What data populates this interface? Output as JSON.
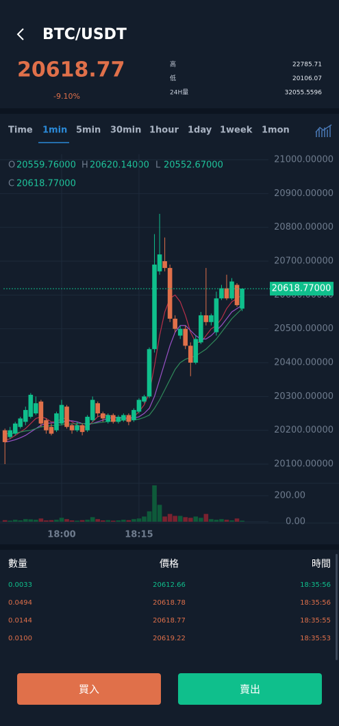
{
  "header": {
    "title": "BTC/USDT",
    "price": "20618.77",
    "change": "-9.10%"
  },
  "stats": [
    {
      "label": "高",
      "value": "22785.71"
    },
    {
      "label": "低",
      "value": "20106.07"
    },
    {
      "label": "24H量",
      "value": "32055.5596"
    }
  ],
  "tabs": {
    "items": [
      "Time",
      "1min",
      "5min",
      "30min",
      "1hour",
      "1day",
      "1week",
      "1mon"
    ],
    "active": 1
  },
  "ohlc": [
    {
      "label": "O",
      "value": "20559.76000"
    },
    {
      "label": "H",
      "value": "20620.14000"
    },
    {
      "label": "L",
      "value": "20552.67000"
    },
    {
      "label": "C",
      "value": "20618.77000"
    }
  ],
  "chart_data": {
    "type": "candlestick",
    "x": [
      null,
      null,
      null,
      null,
      null,
      null,
      null,
      null,
      null,
      null,
      null,
      "18:00",
      null,
      null,
      null,
      null,
      null,
      null,
      null,
      null,
      null,
      null,
      null,
      null,
      null,
      null,
      "18:15",
      null,
      null,
      null,
      null,
      null,
      null,
      null,
      null,
      null,
      null,
      null,
      null,
      null,
      null,
      null,
      null,
      null,
      null,
      null,
      null
    ],
    "open": [
      20200,
      20180,
      20190,
      20210,
      20225,
      20240,
      20250,
      20285,
      20230,
      20210,
      20200,
      20220,
      20270,
      20215,
      20200,
      20215,
      20200,
      20230,
      20280,
      20250,
      20225,
      20245,
      20225,
      20230,
      20245,
      20230,
      20255,
      20285,
      20300,
      20440,
      20670,
      20700,
      20680,
      20530,
      20480,
      20500,
      20450,
      20400,
      20460,
      20540,
      20520,
      20490,
      20590,
      20620,
      20590,
      20630,
      20559.76
    ],
    "high": [
      20205,
      20210,
      20225,
      20240,
      20270,
      20310,
      20300,
      20290,
      20235,
      20220,
      20255,
      20290,
      20275,
      20220,
      20225,
      20220,
      20245,
      20300,
      20285,
      20255,
      20250,
      20250,
      20245,
      20250,
      20250,
      20265,
      20295,
      20305,
      20445,
      20780,
      20840,
      20770,
      20690,
      20540,
      20510,
      20510,
      20460,
      20480,
      20550,
      20680,
      20545,
      20610,
      20630,
      20660,
      20650,
      20635,
      20620.14
    ],
    "low": [
      20100,
      20175,
      20185,
      20205,
      20215,
      20235,
      20245,
      20210,
      20190,
      20185,
      20195,
      20215,
      20205,
      20190,
      20195,
      20185,
      20195,
      20225,
      20240,
      20225,
      20220,
      20220,
      20220,
      20225,
      20215,
      20225,
      20250,
      20280,
      20295,
      20430,
      20660,
      20670,
      20520,
      20490,
      20470,
      20440,
      20360,
      20395,
      20455,
      20510,
      20510,
      20480,
      20585,
      20585,
      20585,
      20565,
      20552.67
    ],
    "close": [
      20165,
      20200,
      20220,
      20235,
      20260,
      20305,
      20280,
      20220,
      20200,
      20190,
      20250,
      20275,
      20210,
      20200,
      20215,
      20195,
      20240,
      20290,
      20250,
      20235,
      20245,
      20225,
      20240,
      20245,
      20225,
      20260,
      20290,
      20300,
      20440,
      20690,
      20720,
      20680,
      20530,
      20500,
      20500,
      20450,
      20400,
      20470,
      20540,
      20520,
      20540,
      20590,
      20620,
      20590,
      20640,
      20570,
      20618.77
    ],
    "volume": [
      12,
      8,
      15,
      10,
      20,
      18,
      15,
      25,
      10,
      12,
      15,
      30,
      20,
      10,
      8,
      12,
      15,
      35,
      20,
      10,
      12,
      8,
      10,
      15,
      12,
      20,
      25,
      40,
      80,
      280,
      130,
      40,
      60,
      45,
      45,
      35,
      30,
      40,
      30,
      60,
      20,
      15,
      20,
      15,
      10,
      25,
      8
    ],
    "moving_averages": [
      {
        "color": "#b8304a",
        "values": [
          20170,
          20175,
          20185,
          20195,
          20205,
          20220,
          20235,
          20240,
          20235,
          20225,
          20225,
          20235,
          20235,
          20225,
          20215,
          20210,
          20210,
          20225,
          20240,
          20245,
          20245,
          20240,
          20237,
          20235,
          20235,
          20240,
          20255,
          20275,
          20310,
          20390,
          20480,
          20550,
          20590,
          20600,
          20580,
          20540,
          20490,
          20460,
          20460,
          20480,
          20500,
          20510,
          20530,
          20560,
          20580,
          20590,
          20600
        ]
      },
      {
        "color": "#9b52c9",
        "values": [
          20165,
          20168,
          20172,
          20178,
          20185,
          20195,
          20205,
          20215,
          20220,
          20222,
          20222,
          20225,
          20228,
          20228,
          20225,
          20220,
          20218,
          20220,
          20225,
          20230,
          20235,
          20238,
          20238,
          20237,
          20236,
          20236,
          20240,
          20250,
          20265,
          20300,
          20350,
          20400,
          20450,
          20490,
          20510,
          20510,
          20495,
          20480,
          20470,
          20470,
          20480,
          20495,
          20510,
          20530,
          20550,
          20560,
          20570
        ]
      },
      {
        "color": "#2f8a5a",
        "values": [
          20190,
          20190,
          20192,
          20195,
          20198,
          20200,
          20205,
          20210,
          20212,
          20214,
          20215,
          20216,
          20218,
          20219,
          20220,
          20220,
          20220,
          20220,
          20222,
          20224,
          20226,
          20228,
          20229,
          20230,
          20230,
          20231,
          20233,
          20238,
          20245,
          20265,
          20290,
          20320,
          20350,
          20380,
          20400,
          20410,
          20415,
          20420,
          20430,
          20440,
          20455,
          20470,
          20490,
          20510,
          20530,
          20545,
          20560
        ]
      }
    ],
    "up_color": "#0fbf8c",
    "down_color": "#e0704a",
    "volume_up_color": "#0e5a3a",
    "volume_down_color": "#7a2230",
    "ylim": [
      20060,
      21020
    ],
    "yticks": [
      {
        "value": 21000,
        "label": "21000.00000"
      },
      {
        "value": 20900,
        "label": "20900.00000"
      },
      {
        "value": 20800,
        "label": "20800.00000"
      },
      {
        "value": 20700,
        "label": "20700.00000"
      },
      {
        "value": 20600,
        "label": "20600.00000"
      },
      {
        "value": 20500,
        "label": "20500.00000"
      },
      {
        "value": 20400,
        "label": "20400.00000"
      },
      {
        "value": 20300,
        "label": "20300.00000"
      },
      {
        "value": 20200,
        "label": "20200.00000"
      },
      {
        "value": 20100,
        "label": "20100.00000"
      }
    ],
    "volume_ylim": [
      0,
      280
    ],
    "volume_ticks": [
      {
        "value": 200,
        "label": "200.00"
      },
      {
        "value": 0,
        "label": "0.00"
      }
    ],
    "current_price": {
      "value": 20618.77,
      "label": "20618.77000"
    },
    "grid": true
  },
  "trades": {
    "headers": [
      "數量",
      "價格",
      "時間"
    ],
    "rows": [
      [
        "0.0033",
        "20612.66",
        "18:35:56"
      ],
      [
        "0.0494",
        "20618.78",
        "18:35:56"
      ],
      [
        "0.0144",
        "20618.77",
        "18:35:55"
      ],
      [
        "0.0100",
        "20619.22",
        "18:35:53"
      ]
    ],
    "colors": [
      "#0fbf8c",
      "#e0704a",
      "#e0704a",
      "#e0704a"
    ]
  },
  "buttons": {
    "buy": "買入",
    "sell": "賣出"
  }
}
